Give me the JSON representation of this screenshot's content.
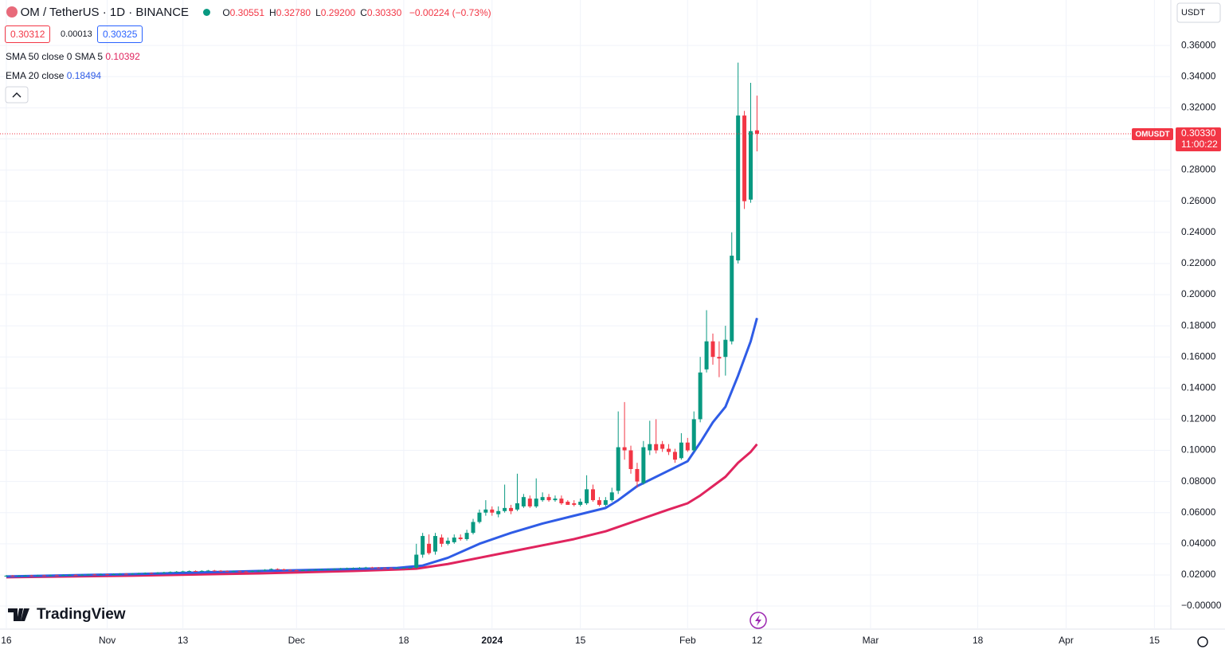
{
  "header": {
    "symbol": "OM / TetherUS · 1D · BINANCE",
    "ohlc": [
      {
        "key": "O",
        "value": "0.30551"
      },
      {
        "key": "H",
        "value": "0.32780"
      },
      {
        "key": "L",
        "value": "0.29200"
      },
      {
        "key": "C",
        "value": "0.30330"
      }
    ],
    "change": "−0.00224 (−0.73%)",
    "bid": "0.30312",
    "spread": "0.00013",
    "ask": "0.30325",
    "currency": "USDT",
    "logo": "TradingView"
  },
  "chart_data": {
    "type": "candlestick",
    "up_color": "#089981",
    "down_color": "#f23645",
    "x": [
      0,
      1,
      2,
      3,
      4,
      5,
      6,
      7,
      8,
      9,
      10,
      11,
      12,
      13,
      14,
      15,
      16,
      17,
      18,
      19,
      20,
      21,
      22,
      23,
      24,
      25,
      26,
      27,
      28,
      29,
      30,
      31,
      32,
      33,
      34,
      35,
      36,
      37,
      38,
      39,
      40,
      41,
      42,
      43,
      44,
      45,
      46,
      47,
      48,
      49,
      50,
      51,
      52,
      53,
      54,
      55,
      56,
      57,
      58,
      59,
      60,
      61,
      62,
      63,
      64,
      65,
      66,
      67,
      68,
      69,
      70,
      71,
      72,
      73,
      74,
      75,
      76,
      77,
      78,
      79,
      80,
      81,
      82,
      83,
      84,
      85,
      86,
      87,
      88,
      89,
      90,
      91,
      92,
      93,
      94,
      95,
      96,
      97,
      98,
      99,
      100,
      101,
      102,
      103,
      104,
      105,
      106,
      107,
      108,
      109,
      110,
      111,
      112,
      113,
      114,
      115,
      116,
      117,
      118,
      119
    ],
    "open": [
      0.0194,
      0.0195,
      0.0193,
      0.0194,
      0.0196,
      0.0195,
      0.0197,
      0.0196,
      0.0198,
      0.0197,
      0.0199,
      0.02,
      0.0198,
      0.0201,
      0.0203,
      0.0202,
      0.0204,
      0.0203,
      0.0205,
      0.0207,
      0.0206,
      0.0208,
      0.021,
      0.0212,
      0.0211,
      0.0214,
      0.0216,
      0.0219,
      0.0221,
      0.0223,
      0.0225,
      0.0224,
      0.0226,
      0.0228,
      0.0227,
      0.0225,
      0.0223,
      0.0224,
      0.0222,
      0.0221,
      0.0225,
      0.0228,
      0.0233,
      0.0238,
      0.0236,
      0.0232,
      0.023,
      0.0229,
      0.0231,
      0.0233,
      0.0234,
      0.0236,
      0.0237,
      0.0239,
      0.0241,
      0.0243,
      0.0244,
      0.0246,
      0.0248,
      0.0247,
      0.0245,
      0.0244,
      0.0243,
      0.0244,
      0.0245,
      0.0246,
      0.033,
      0.04,
      0.035,
      0.044,
      0.04,
      0.041,
      0.044,
      0.043,
      0.047,
      0.054,
      0.06,
      0.062,
      0.059,
      0.061,
      0.063,
      0.062,
      0.064,
      0.069,
      0.064,
      0.068,
      0.07,
      0.068,
      0.069,
      0.067,
      0.066,
      0.065,
      0.066,
      0.075,
      0.068,
      0.065,
      0.068,
      0.074,
      0.102,
      0.1,
      0.088,
      0.079,
      0.1,
      0.104,
      0.104,
      0.101,
      0.099,
      0.095,
      0.105,
      0.1,
      0.12,
      0.152,
      0.17,
      0.16,
      0.16,
      0.17,
      0.222,
      0.315,
      0.261,
      0.30551
    ],
    "high": [
      0.0199,
      0.0199,
      0.0198,
      0.02,
      0.02,
      0.0201,
      0.0201,
      0.0202,
      0.0202,
      0.0203,
      0.0204,
      0.0204,
      0.0205,
      0.0207,
      0.0207,
      0.0208,
      0.0208,
      0.0209,
      0.0211,
      0.0211,
      0.0212,
      0.0214,
      0.0216,
      0.0216,
      0.0218,
      0.022,
      0.0223,
      0.0225,
      0.0227,
      0.0229,
      0.0229,
      0.023,
      0.0232,
      0.0232,
      0.0231,
      0.0229,
      0.0228,
      0.0228,
      0.0226,
      0.0229,
      0.0232,
      0.0237,
      0.0242,
      0.0242,
      0.024,
      0.0236,
      0.0234,
      0.0235,
      0.0237,
      0.0238,
      0.024,
      0.0241,
      0.0243,
      0.0245,
      0.0247,
      0.0248,
      0.025,
      0.0252,
      0.0252,
      0.0251,
      0.0249,
      0.0248,
      0.0248,
      0.0249,
      0.025,
      0.04,
      0.047,
      0.046,
      0.047,
      0.046,
      0.044,
      0.046,
      0.046,
      0.049,
      0.056,
      0.062,
      0.068,
      0.064,
      0.064,
      0.078,
      0.065,
      0.085,
      0.072,
      0.071,
      0.082,
      0.073,
      0.072,
      0.071,
      0.071,
      0.068,
      0.068,
      0.069,
      0.084,
      0.078,
      0.07,
      0.07,
      0.076,
      0.125,
      0.131,
      0.103,
      0.092,
      0.106,
      0.119,
      0.12,
      0.106,
      0.104,
      0.101,
      0.111,
      0.108,
      0.125,
      0.16,
      0.19,
      0.175,
      0.17,
      0.18,
      0.24,
      0.349,
      0.318,
      0.336,
      0.3278
    ],
    "low": [
      0.019,
      0.0189,
      0.0189,
      0.019,
      0.0191,
      0.0191,
      0.0192,
      0.0192,
      0.0193,
      0.0193,
      0.0195,
      0.0194,
      0.0194,
      0.0197,
      0.0198,
      0.0198,
      0.0199,
      0.0199,
      0.0201,
      0.0202,
      0.0202,
      0.0204,
      0.0206,
      0.0207,
      0.0207,
      0.021,
      0.0212,
      0.0215,
      0.0217,
      0.0219,
      0.022,
      0.022,
      0.0222,
      0.0223,
      0.0221,
      0.0219,
      0.0219,
      0.0218,
      0.0217,
      0.0217,
      0.0221,
      0.0224,
      0.0229,
      0.0232,
      0.0228,
      0.0226,
      0.0225,
      0.0225,
      0.0227,
      0.0229,
      0.023,
      0.0232,
      0.0233,
      0.0235,
      0.0237,
      0.0239,
      0.024,
      0.0242,
      0.0243,
      0.0241,
      0.024,
      0.0239,
      0.0239,
      0.024,
      0.0241,
      0.024,
      0.031,
      0.033,
      0.033,
      0.038,
      0.039,
      0.04,
      0.042,
      0.042,
      0.046,
      0.053,
      0.058,
      0.058,
      0.057,
      0.06,
      0.059,
      0.061,
      0.063,
      0.063,
      0.063,
      0.067,
      0.067,
      0.067,
      0.065,
      0.065,
      0.064,
      0.064,
      0.065,
      0.067,
      0.064,
      0.064,
      0.067,
      0.072,
      0.094,
      0.085,
      0.076,
      0.078,
      0.097,
      0.098,
      0.099,
      0.097,
      0.092,
      0.094,
      0.099,
      0.099,
      0.118,
      0.15,
      0.155,
      0.147,
      0.148,
      0.168,
      0.22,
      0.255,
      0.259,
      0.292
    ],
    "close": [
      0.0195,
      0.0193,
      0.0194,
      0.0196,
      0.0195,
      0.0197,
      0.0196,
      0.0198,
      0.0197,
      0.0199,
      0.02,
      0.0198,
      0.0201,
      0.0203,
      0.0202,
      0.0204,
      0.0203,
      0.0205,
      0.0207,
      0.0206,
      0.0208,
      0.021,
      0.0212,
      0.0211,
      0.0214,
      0.0216,
      0.0219,
      0.0221,
      0.0223,
      0.0225,
      0.0224,
      0.0226,
      0.0228,
      0.0227,
      0.0225,
      0.0223,
      0.0224,
      0.0222,
      0.0221,
      0.0225,
      0.0228,
      0.0233,
      0.0238,
      0.0236,
      0.0232,
      0.023,
      0.0229,
      0.0231,
      0.0233,
      0.0234,
      0.0236,
      0.0237,
      0.0239,
      0.0241,
      0.0243,
      0.0244,
      0.0246,
      0.0248,
      0.0247,
      0.0245,
      0.0244,
      0.0243,
      0.0244,
      0.0245,
      0.0246,
      0.033,
      0.045,
      0.034,
      0.045,
      0.04,
      0.042,
      0.044,
      0.043,
      0.047,
      0.054,
      0.06,
      0.062,
      0.06,
      0.061,
      0.063,
      0.061,
      0.066,
      0.07,
      0.064,
      0.069,
      0.07,
      0.068,
      0.069,
      0.066,
      0.065,
      0.065,
      0.067,
      0.075,
      0.068,
      0.065,
      0.068,
      0.073,
      0.102,
      0.1,
      0.088,
      0.08,
      0.102,
      0.104,
      0.1,
      0.101,
      0.099,
      0.094,
      0.105,
      0.1,
      0.12,
      0.15,
      0.17,
      0.16,
      0.159,
      0.171,
      0.225,
      0.315,
      0.26,
      0.305,
      0.3033
    ],
    "lines": [
      {
        "name": "SMA 50 close 0 SMA 5",
        "color": "#e0245e",
        "x": [
          0,
          20,
          40,
          55,
          62,
          65,
          70,
          75,
          80,
          85,
          90,
          95,
          100,
          105,
          108,
          110,
          112,
          114,
          116,
          118,
          119
        ],
        "values": [
          0.0185,
          0.0195,
          0.021,
          0.0225,
          0.0235,
          0.024,
          0.027,
          0.031,
          0.035,
          0.039,
          0.043,
          0.048,
          0.055,
          0.062,
          0.066,
          0.071,
          0.077,
          0.083,
          0.092,
          0.099,
          0.10392
        ]
      },
      {
        "name": "EMA 20 close",
        "color": "#2f5ce6",
        "x": [
          0,
          20,
          40,
          55,
          62,
          66,
          70,
          75,
          80,
          85,
          90,
          95,
          97,
          100,
          105,
          108,
          110,
          112,
          114,
          116,
          118,
          119
        ],
        "values": [
          0.019,
          0.0205,
          0.0225,
          0.0238,
          0.0245,
          0.026,
          0.031,
          0.04,
          0.047,
          0.053,
          0.058,
          0.063,
          0.068,
          0.077,
          0.087,
          0.093,
          0.105,
          0.118,
          0.128,
          0.148,
          0.17,
          0.18494
        ]
      }
    ],
    "price_line": {
      "symbol": "OMUSDT",
      "value": 0.3033,
      "value_label": "0.30330",
      "countdown": "11:00:22"
    },
    "xlim": [
      -1,
      184.6
    ],
    "xticks": [
      {
        "value": 0,
        "label": "16"
      },
      {
        "value": 16,
        "label": "Nov"
      },
      {
        "value": 28,
        "label": "13"
      },
      {
        "value": 46,
        "label": "Dec"
      },
      {
        "value": 63,
        "label": "18"
      },
      {
        "value": 77,
        "label": "2024"
      },
      {
        "value": 91,
        "label": "15"
      },
      {
        "value": 108,
        "label": "Feb"
      },
      {
        "value": 119,
        "label": "12"
      },
      {
        "value": 137,
        "label": "Mar"
      },
      {
        "value": 154,
        "label": "18"
      },
      {
        "value": 168,
        "label": "Apr"
      },
      {
        "value": 182,
        "label": "15"
      }
    ],
    "ylim": [
      -0.0148,
      0.3892
    ],
    "yticks": [
      {
        "value": 0,
        "label": "−0.00000"
      },
      {
        "value": 0.02,
        "label": "0.02000"
      },
      {
        "value": 0.04,
        "label": "0.04000"
      },
      {
        "value": 0.06,
        "label": "0.06000"
      },
      {
        "value": 0.08,
        "label": "0.08000"
      },
      {
        "value": 0.1,
        "label": "0.10000"
      },
      {
        "value": 0.12,
        "label": "0.12000"
      },
      {
        "value": 0.14,
        "label": "0.14000"
      },
      {
        "value": 0.16,
        "label": "0.16000"
      },
      {
        "value": 0.18,
        "label": "0.18000"
      },
      {
        "value": 0.2,
        "label": "0.20000"
      },
      {
        "value": 0.22,
        "label": "0.22000"
      },
      {
        "value": 0.24,
        "label": "0.24000"
      },
      {
        "value": 0.26,
        "label": "0.26000"
      },
      {
        "value": 0.28,
        "label": "0.28000"
      },
      {
        "value": 0.3,
        "label": "0.30000"
      },
      {
        "value": 0.32,
        "label": "0.32000"
      },
      {
        "value": 0.34,
        "label": "0.34000"
      },
      {
        "value": 0.36,
        "label": "0.36000"
      }
    ],
    "grid": true
  }
}
